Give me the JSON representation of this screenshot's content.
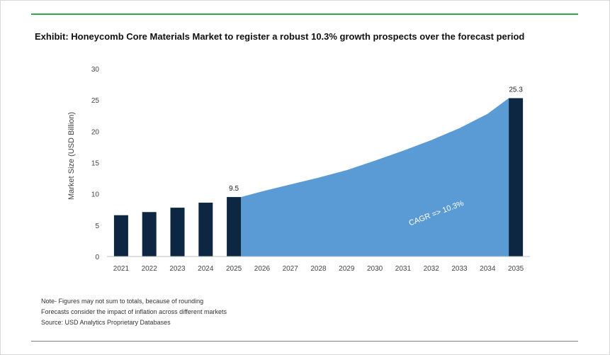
{
  "exhibit": {
    "title": "Exhibit: Honeycomb Core Materials Market to register a robust 10.3% growth prospects over the forecast period",
    "notes": [
      "Note- Figures may not sum to totals, because of rounding",
      "Forecasts consider the impact of inflation across different markets",
      "Source: USD Analytics Proprietary Databases"
    ],
    "accent_color": "#2eaa4a"
  },
  "chart_data": {
    "type": "bar",
    "title": "Exhibit: Honeycomb Core Materials Market to register a robust 10.3% growth prospects over the forecast period",
    "ylabel": "Market Size (USD Billion)",
    "xlabel": "",
    "ylim": [
      0,
      30
    ],
    "yticks": [
      0,
      5,
      10,
      15,
      20,
      25,
      30
    ],
    "grid": false,
    "categories": [
      "2021",
      "2022",
      "2023",
      "2024",
      "2025",
      "2026",
      "2027",
      "2028",
      "2029",
      "2030",
      "2031",
      "2032",
      "2033",
      "2034",
      "2035"
    ],
    "bars": [
      {
        "x": "2021",
        "value": 6.6
      },
      {
        "x": "2022",
        "value": 7.1
      },
      {
        "x": "2023",
        "value": 7.8
      },
      {
        "x": "2024",
        "value": 8.6
      },
      {
        "x": "2025",
        "value": 9.5,
        "label": "9.5"
      },
      {
        "x": "2035",
        "value": 25.3,
        "label": "25.3"
      }
    ],
    "area": {
      "x": [
        "2025",
        "2026",
        "2027",
        "2028",
        "2029",
        "2030",
        "2031",
        "2032",
        "2033",
        "2034",
        "2035"
      ],
      "values": [
        9.5,
        10.4,
        11.5,
        12.6,
        13.8,
        15.3,
        16.9,
        18.6,
        20.5,
        22.8,
        25.3
      ]
    },
    "annotation": "CAGR => 10.3%",
    "colors": {
      "bar": "#0d2742",
      "area": "#5b9bd5",
      "annotation_text": "#ffffff"
    }
  }
}
